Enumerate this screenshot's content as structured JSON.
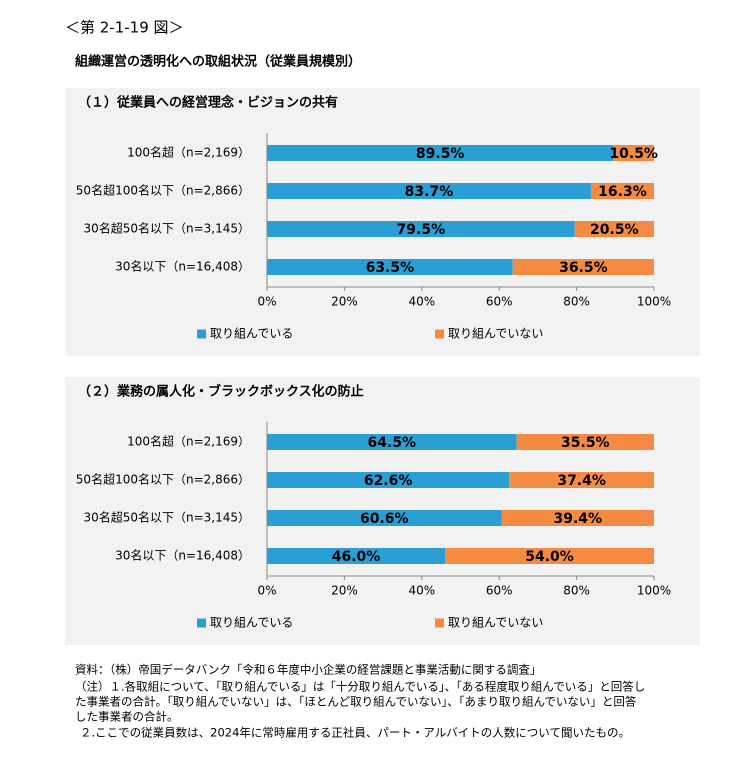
{
  "header": {
    "figure_label": "＜第 2-1-19 図＞",
    "title": "組織運営の透明化への取組状況（従業員規模別）"
  },
  "chart_data": [
    {
      "type": "bar",
      "orientation": "horizontal",
      "stacked": true,
      "title": "（１）従業員への経営理念・ビジョンの共有",
      "categories": [
        "100名超（n=2,169）",
        "50名超100名以下（n=2,866）",
        "30名超50名以下（n=3,145）",
        "30名以下（n=16,408）"
      ],
      "series": [
        {
          "name": "取り組んでいる",
          "color": "#2a9fd6",
          "values": [
            89.5,
            83.7,
            79.5,
            63.5
          ],
          "value_labels": [
            "89.5%",
            "83.7%",
            "79.5%",
            "63.5%"
          ]
        },
        {
          "name": "取り組んでいない",
          "color": "#f58a42",
          "values": [
            10.5,
            16.3,
            20.5,
            36.5
          ],
          "value_labels": [
            "10.5%",
            "16.3%",
            "20.5%",
            "36.5%"
          ]
        }
      ],
      "xlim": [
        0,
        100
      ],
      "xticks": [
        {
          "value": 0,
          "label": "0%"
        },
        {
          "value": 20,
          "label": "20%"
        },
        {
          "value": 40,
          "label": "40%"
        },
        {
          "value": 60,
          "label": "60%"
        },
        {
          "value": 80,
          "label": "80%"
        },
        {
          "value": 100,
          "label": "100%"
        }
      ],
      "legend": "bottom"
    },
    {
      "type": "bar",
      "orientation": "horizontal",
      "stacked": true,
      "title": "（２）業務の属人化・ブラックボックス化の防止",
      "categories": [
        "100名超（n=2,169）",
        "50名超100名以下（n=2,866）",
        "30名超50名以下（n=3,145）",
        "30名以下（n=16,408）"
      ],
      "series": [
        {
          "name": "取り組んでいる",
          "color": "#2a9fd6",
          "values": [
            64.5,
            62.6,
            60.6,
            46.0
          ],
          "value_labels": [
            "64.5%",
            "62.6%",
            "60.6%",
            "46.0%"
          ]
        },
        {
          "name": "取り組んでいない",
          "color": "#f58a42",
          "values": [
            35.5,
            37.4,
            39.4,
            54.0
          ],
          "value_labels": [
            "35.5%",
            "37.4%",
            "39.4%",
            "54.0%"
          ]
        }
      ],
      "xlim": [
        0,
        100
      ],
      "xticks": [
        {
          "value": 0,
          "label": "0%"
        },
        {
          "value": 20,
          "label": "20%"
        },
        {
          "value": 40,
          "label": "40%"
        },
        {
          "value": 60,
          "label": "60%"
        },
        {
          "value": 80,
          "label": "80%"
        },
        {
          "value": 100,
          "label": "100%"
        }
      ],
      "legend": "bottom"
    }
  ],
  "notes": [
    "資料：（株）帝国データバンク「令和６年度中小企業の経営課題と事業活動に関する調査」",
    "（注）１.各取組について、「取り組んでいる」は「十分取り組んでいる」、「ある程度取り組んでいる」と回答し",
    "た事業者の合計。「取り組んでいない」は、「ほとんど取り組んでいない」、「あまり取り組んでいない」と回答",
    "した事業者の合計。",
    "２.ここでの従業員数は、2024年に常時雇用する正社員、パート・アルバイトの人数について聞いたもの。"
  ]
}
